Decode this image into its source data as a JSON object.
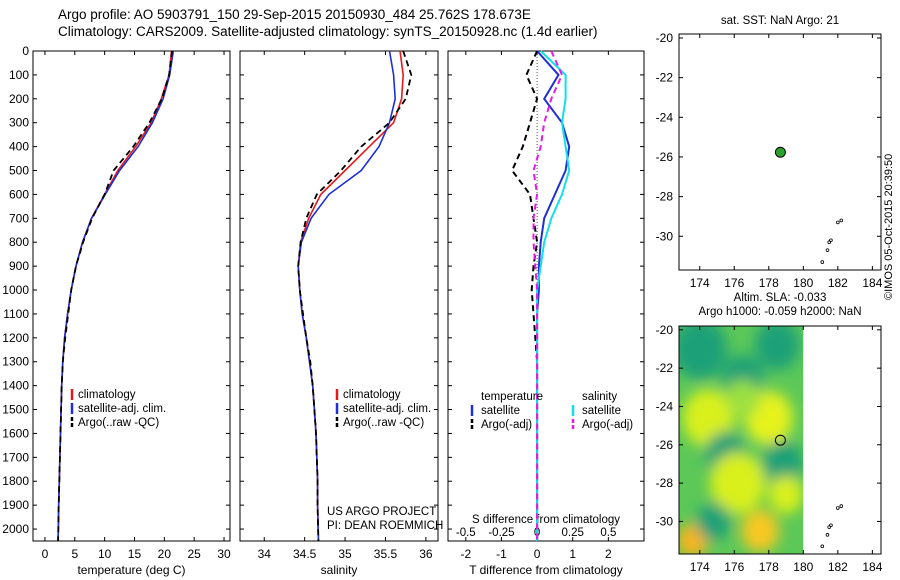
{
  "header": {
    "line1": "Argo profile: AO 5903791_150 29-Sep-2015 20150930_484 25.762S 178.673E",
    "line2": "Climatology: CARS2009. Satellite-adjusted climatology: synTS_20150928.nc (1.4d earlier)"
  },
  "stamp": "©IMOS 05-Oct-2015 20:39:50",
  "chart_data": [
    {
      "type": "line",
      "xlabel": "temperature (deg C)",
      "ylabel": "",
      "xlim": [
        -2,
        31
      ],
      "ylim": [
        2050,
        0
      ],
      "xticks": [
        "0",
        "5",
        "10",
        "15",
        "20",
        "25",
        "30"
      ],
      "yticks": [
        "0",
        "100",
        "200",
        "300",
        "400",
        "500",
        "600",
        "700",
        "800",
        "900",
        "1000",
        "1100",
        "1200",
        "1300",
        "1400",
        "1500",
        "1600",
        "1700",
        "1800",
        "1900",
        "2000"
      ],
      "legend": [
        "climatology",
        "satellite-adj. clim.",
        "Argo(..raw -QC)"
      ],
      "legend_position": "lower-right",
      "series": [
        {
          "name": "climatology",
          "color": "#e41a1c",
          "x": [
            21.2,
            20.8,
            19.5,
            17.8,
            15.2,
            12.2,
            10.0,
            7.8,
            6.3,
            5.2,
            4.4,
            3.8,
            3.3,
            3.0,
            2.8,
            2.7,
            2.6,
            2.5,
            2.4,
            2.3,
            2.2
          ],
          "y": [
            0,
            100,
            200,
            300,
            400,
            500,
            600,
            700,
            800,
            900,
            1000,
            1100,
            1200,
            1300,
            1400,
            1500,
            1600,
            1700,
            1800,
            1900,
            2050
          ]
        },
        {
          "name": "satellite-adj. clim.",
          "color": "#1f2fd6",
          "x": [
            21.5,
            20.9,
            19.8,
            18.0,
            15.6,
            12.5,
            10.1,
            7.8,
            6.3,
            5.2,
            4.4,
            3.8,
            3.3,
            3.0,
            2.8,
            2.7,
            2.6,
            2.5,
            2.4,
            2.3,
            2.2
          ],
          "y": [
            0,
            100,
            200,
            300,
            400,
            500,
            600,
            700,
            800,
            900,
            1000,
            1100,
            1200,
            1300,
            1400,
            1500,
            1600,
            1700,
            1800,
            1900,
            2050
          ]
        },
        {
          "name": "Argo(..raw -QC)",
          "color": "#000000",
          "x": [
            21.3,
            20.8,
            19.6,
            17.5,
            14.8,
            11.5,
            10.0,
            7.9,
            6.4,
            5.2,
            4.4,
            3.9,
            3.4,
            3.0,
            2.8,
            2.7,
            2.6,
            2.5,
            2.4,
            2.3,
            2.2
          ],
          "y": [
            0,
            100,
            200,
            300,
            400,
            500,
            600,
            700,
            800,
            900,
            1000,
            1100,
            1200,
            1300,
            1400,
            1500,
            1600,
            1700,
            1800,
            1900,
            2050
          ]
        }
      ]
    },
    {
      "type": "line",
      "xlabel": "salinity",
      "xlim": [
        33.7,
        36.15
      ],
      "ylim": [
        2050,
        0
      ],
      "xticks": [
        "34",
        "34.5",
        "35",
        "35.5",
        "36"
      ],
      "legend": [
        "climatology",
        "satellite-adj. clim.",
        "Argo(..raw -QC)"
      ],
      "legend_position": "lower-right",
      "annotation": [
        "US ARGO PROJECT",
        "PI: DEAN ROEMMICH"
      ],
      "series": [
        {
          "name": "climatology",
          "color": "#e41a1c",
          "x": [
            35.68,
            35.72,
            35.7,
            35.6,
            35.3,
            35.0,
            34.7,
            34.55,
            34.45,
            34.42,
            34.44,
            34.47,
            34.52,
            34.56,
            34.6,
            34.62,
            34.64,
            34.65,
            34.66,
            34.66,
            34.67
          ],
          "y": [
            0,
            100,
            200,
            300,
            400,
            500,
            600,
            700,
            800,
            900,
            1000,
            1100,
            1200,
            1300,
            1400,
            1500,
            1600,
            1700,
            1800,
            1900,
            2050
          ]
        },
        {
          "name": "satellite-adj. clim.",
          "color": "#1f2fd6",
          "x": [
            35.55,
            35.6,
            35.62,
            35.55,
            35.42,
            35.2,
            34.8,
            34.58,
            34.46,
            34.42,
            34.44,
            34.47,
            34.52,
            34.56,
            34.6,
            34.62,
            34.64,
            34.65,
            34.66,
            34.66,
            34.67
          ],
          "y": [
            0,
            100,
            200,
            300,
            400,
            500,
            600,
            700,
            800,
            900,
            1000,
            1100,
            1200,
            1300,
            1400,
            1500,
            1600,
            1700,
            1800,
            1900,
            2050
          ]
        },
        {
          "name": "Argo(..raw -QC)",
          "color": "#000000",
          "x": [
            35.72,
            35.82,
            35.75,
            35.55,
            35.2,
            34.95,
            34.65,
            34.52,
            34.45,
            34.42,
            34.44,
            34.48,
            34.52,
            34.57,
            34.6,
            34.62,
            34.64,
            34.65,
            34.66,
            34.66,
            34.67
          ],
          "y": [
            0,
            100,
            200,
            300,
            400,
            500,
            600,
            700,
            800,
            900,
            1000,
            1100,
            1200,
            1300,
            1400,
            1500,
            1600,
            1700,
            1800,
            1900,
            2050
          ]
        }
      ]
    },
    {
      "type": "line",
      "xlabel": "T difference from climatology",
      "xlabel_top": "S difference from climatology",
      "xlim": [
        -2.5,
        3
      ],
      "ylim": [
        2050,
        0
      ],
      "xticks": [
        "-2",
        "-1",
        "0",
        "1",
        "2"
      ],
      "xticks_top": [
        "-0.5",
        "-0.25",
        "0",
        "0.25",
        "0.5"
      ],
      "legend_titles": [
        "temperature",
        "salinity"
      ],
      "legend": [
        "satellite",
        "Argo(-adj)",
        "satellite",
        "Argo(-adj)"
      ],
      "legend_position": "lower-center",
      "series": [
        {
          "name": "satellite",
          "color": "#1f2fd6",
          "dash": "none",
          "x": [
            0.0,
            0.6,
            0.2,
            0.7,
            0.9,
            0.8,
            0.5,
            0.2,
            0.1,
            0.05,
            0.05,
            0.0,
            0.0,
            0.0,
            0.0,
            0.0,
            0.0,
            0.0,
            0.0,
            0.0,
            0.0
          ],
          "y": [
            0,
            100,
            200,
            300,
            400,
            500,
            600,
            700,
            800,
            900,
            1000,
            1100,
            1200,
            1300,
            1400,
            1500,
            1600,
            1700,
            1800,
            1900,
            2050
          ]
        },
        {
          "name": "Argo(-adj)",
          "color": "#000000",
          "dash": "dash",
          "x": [
            0.0,
            -0.3,
            0.0,
            -0.2,
            -0.4,
            -0.7,
            -0.2,
            -0.1,
            0.0,
            -0.1,
            -0.15,
            -0.1,
            -0.05,
            0.0,
            0.0,
            0.0,
            0.0,
            0.0,
            0.0,
            0.0,
            0.0
          ],
          "y": [
            0,
            100,
            200,
            300,
            400,
            500,
            600,
            700,
            800,
            900,
            1000,
            1100,
            1200,
            1300,
            1400,
            1500,
            1600,
            1700,
            1800,
            1900,
            2050
          ]
        },
        {
          "name": "satellite",
          "color": "#11e0e8",
          "dash": "none",
          "x": [
            0.1,
            0.8,
            0.8,
            0.7,
            0.8,
            0.9,
            0.7,
            0.4,
            0.2,
            0.1,
            0.0,
            0.0,
            0.0,
            0.0,
            0.0,
            0.0,
            0.0,
            0.0,
            0.0,
            0.0,
            0.0
          ],
          "y": [
            0,
            100,
            200,
            300,
            400,
            500,
            600,
            700,
            800,
            900,
            1000,
            1100,
            1200,
            1300,
            1400,
            1500,
            1600,
            1700,
            1800,
            1900,
            2050
          ]
        },
        {
          "name": "Argo(-adj)",
          "color": "#e619e6",
          "dash": "dash",
          "x": [
            0.4,
            0.7,
            0.4,
            0.2,
            0.1,
            -0.1,
            0.0,
            -0.1,
            -0.1,
            -0.05,
            0.0,
            0.0,
            0.0,
            0.0,
            0.0,
            0.0,
            0.0,
            0.0,
            0.0,
            0.0,
            0.0
          ],
          "y": [
            0,
            100,
            200,
            300,
            400,
            500,
            600,
            700,
            800,
            900,
            1000,
            1100,
            1200,
            1300,
            1400,
            1500,
            1600,
            1700,
            1800,
            1900,
            2050
          ]
        }
      ]
    },
    {
      "type": "scatter",
      "title": "sat. SST: NaN Argo: 21",
      "xlim": [
        172.8,
        184.5
      ],
      "ylim": [
        -31.7,
        -19.8
      ],
      "xticks": [
        "174",
        "176",
        "178",
        "180",
        "182",
        "184"
      ],
      "yticks": [
        "-20",
        "-22",
        "-24",
        "-26",
        "-28",
        "-30"
      ],
      "points": [
        {
          "x": 178.673,
          "y": -25.762,
          "color": "#2ca02c"
        }
      ],
      "trail": [
        {
          "x": 182.2,
          "y": -29.2
        },
        {
          "x": 182.0,
          "y": -29.3
        },
        {
          "x": 181.6,
          "y": -30.2
        },
        {
          "x": 181.5,
          "y": -30.3
        },
        {
          "x": 181.4,
          "y": -30.7
        },
        {
          "x": 181.1,
          "y": -31.3
        }
      ]
    },
    {
      "type": "heatmap",
      "title": "Altim. SLA: -0.033",
      "subtitle": "Argo h1000: -0.059 h2000: NaN",
      "xlim": [
        172.8,
        184.5
      ],
      "ylim": [
        -31.7,
        -19.8
      ],
      "xticks": [
        "174",
        "176",
        "178",
        "180",
        "182",
        "184"
      ],
      "yticks": [
        "-20",
        "-22",
        "-24",
        "-26",
        "-28",
        "-30"
      ],
      "field_xlim": [
        172.8,
        180.0
      ],
      "points": [
        {
          "x": 178.673,
          "y": -25.762
        }
      ],
      "trail": [
        {
          "x": 182.2,
          "y": -29.2
        },
        {
          "x": 182.0,
          "y": -29.3
        },
        {
          "x": 181.6,
          "y": -30.2
        },
        {
          "x": 181.5,
          "y": -30.3
        },
        {
          "x": 181.4,
          "y": -30.7
        },
        {
          "x": 181.1,
          "y": -31.3
        }
      ],
      "blobs": [
        {
          "x": 174.0,
          "y": -21.0,
          "r": 1.6,
          "c": "#1aa078"
        },
        {
          "x": 178.5,
          "y": -20.8,
          "r": 1.3,
          "c": "#1aa078"
        },
        {
          "x": 176.5,
          "y": -22.5,
          "r": 1.2,
          "c": "#1aa078"
        },
        {
          "x": 174.5,
          "y": -24.6,
          "r": 1.5,
          "c": "#d9f01e"
        },
        {
          "x": 178.0,
          "y": -24.6,
          "r": 1.4,
          "c": "#e6f21a"
        },
        {
          "x": 176.5,
          "y": -23.6,
          "r": 1.0,
          "c": "#9ce040"
        },
        {
          "x": 175.5,
          "y": -26.5,
          "r": 1.2,
          "c": "#1aa078"
        },
        {
          "x": 178.8,
          "y": -27.0,
          "r": 1.2,
          "c": "#1aa078"
        },
        {
          "x": 176.2,
          "y": -28.0,
          "r": 1.6,
          "c": "#d9f01e"
        },
        {
          "x": 179.0,
          "y": -28.6,
          "r": 1.0,
          "c": "#d9f01e"
        },
        {
          "x": 177.5,
          "y": -30.5,
          "r": 1.1,
          "c": "#f8c820"
        },
        {
          "x": 173.6,
          "y": -31.0,
          "r": 0.9,
          "c": "#f8b41c"
        },
        {
          "x": 174.8,
          "y": -30.0,
          "r": 1.0,
          "c": "#1aa078"
        }
      ]
    }
  ]
}
